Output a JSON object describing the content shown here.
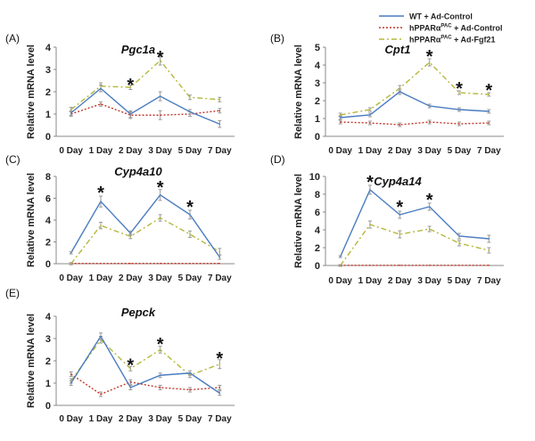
{
  "legend": {
    "position": "top-right",
    "entries": [
      {
        "key": "wt",
        "label": "WT + Ad-Control",
        "color": "#4a7cc0",
        "dash": "solid"
      },
      {
        "key": "pac_ctrl",
        "label_main": "hPPARα",
        "label_sup": "PAC",
        "label_tail": " + Ad-Control",
        "color": "#c0392b",
        "dash": "dotted"
      },
      {
        "key": "pac_fgf",
        "label_main": "hPPARα",
        "label_sup": "PAC",
        "label_tail": " + Ad-Fgf21",
        "color": "#b5b83a",
        "dash": "dashdot"
      }
    ]
  },
  "chart_data": [
    {
      "type": "line",
      "panel_label": "(A)",
      "title": "Pgc1a",
      "xlabel": "",
      "ylabel": "Relative mRNA level",
      "categories": [
        "0 Day",
        "1 Day",
        "2 Day",
        "3 Day",
        "5 Day",
        "7 Day"
      ],
      "ylim": [
        0,
        4
      ],
      "yticks": [
        0,
        1,
        2,
        3,
        4
      ],
      "series": [
        {
          "name": "WT + Ad-Control",
          "values": [
            1.05,
            2.15,
            1.0,
            1.8,
            1.1,
            0.55
          ],
          "errors": [
            0.1,
            0.15,
            0.15,
            0.2,
            0.1,
            0.15
          ]
        },
        {
          "name": "hPPARαPAC + Ad-Control",
          "values": [
            1.0,
            1.45,
            0.95,
            0.95,
            1.0,
            1.15
          ],
          "errors": [
            0.1,
            0.1,
            0.15,
            0.2,
            0.1,
            0.1
          ]
        },
        {
          "name": "hPPARαPAC + Ad-Fgf21",
          "values": [
            1.2,
            2.25,
            2.2,
            3.4,
            1.75,
            1.65
          ],
          "errors": [
            0.1,
            0.15,
            0.1,
            0.2,
            0.1,
            0.1
          ]
        }
      ],
      "stars": [
        {
          "index": 2,
          "value": 2.4
        },
        {
          "index": 3,
          "value": 3.65
        }
      ]
    },
    {
      "type": "line",
      "panel_label": "(B)",
      "title": "Cpt1",
      "xlabel": "",
      "ylabel": "Relative mRNA level",
      "categories": [
        "0 Day",
        "1 Day",
        "2 Day",
        "3 Day",
        "5 Day",
        "7 Day"
      ],
      "ylim": [
        0,
        5
      ],
      "yticks": [
        0,
        1,
        2,
        3,
        4,
        5
      ],
      "series": [
        {
          "name": "WT + Ad-Control",
          "values": [
            1.05,
            1.2,
            2.5,
            1.7,
            1.5,
            1.4
          ],
          "errors": [
            0.1,
            0.1,
            0.15,
            0.1,
            0.1,
            0.1
          ]
        },
        {
          "name": "hPPARαPAC + Ad-Control",
          "values": [
            0.8,
            0.75,
            0.65,
            0.8,
            0.7,
            0.75
          ],
          "errors": [
            0.1,
            0.1,
            0.1,
            0.1,
            0.1,
            0.1
          ]
        },
        {
          "name": "hPPARαPAC + Ad-Fgf21",
          "values": [
            1.2,
            1.5,
            2.7,
            4.15,
            2.45,
            2.35
          ],
          "errors": [
            0.1,
            0.1,
            0.15,
            0.2,
            0.1,
            0.1
          ]
        }
      ],
      "stars": [
        {
          "index": 3,
          "value": 4.6
        },
        {
          "index": 4,
          "value": 2.8
        },
        {
          "index": 5,
          "value": 2.7
        }
      ]
    },
    {
      "type": "line",
      "panel_label": "(C)",
      "title": "Cyp4a10",
      "xlabel": "",
      "ylabel": "Relative mRNA level",
      "categories": [
        "0 Day",
        "1 Day",
        "2 Day",
        "3 Day",
        "5 Day",
        "7 Day"
      ],
      "ylim": [
        0,
        8
      ],
      "yticks": [
        0,
        2,
        4,
        6,
        8
      ],
      "series": [
        {
          "name": "WT + Ad-Control",
          "values": [
            1.0,
            5.7,
            2.8,
            6.3,
            4.5,
            0.6
          ],
          "errors": [
            0.1,
            0.5,
            0.2,
            0.5,
            0.4,
            0.2
          ]
        },
        {
          "name": "hPPARαPAC + Ad-Control",
          "values": [
            0.02,
            0.02,
            0.02,
            0.02,
            0.02,
            0.02
          ],
          "errors": [
            0,
            0,
            0,
            0,
            0,
            0
          ]
        },
        {
          "name": "hPPARαPAC + Ad-Fgf21",
          "values": [
            0.0,
            3.5,
            2.5,
            4.2,
            2.7,
            1.1
          ],
          "errors": [
            0.1,
            0.3,
            0.2,
            0.3,
            0.3,
            0.3
          ]
        }
      ],
      "stars": [
        {
          "index": 1,
          "value": 6.7
        },
        {
          "index": 3,
          "value": 7.2
        },
        {
          "index": 4,
          "value": 5.4
        }
      ]
    },
    {
      "type": "line",
      "panel_label": "(D)",
      "title": "Cyp4a14",
      "xlabel": "",
      "ylabel": "Relative mRNA level",
      "categories": [
        "0 Day",
        "1 Day",
        "2 Day",
        "3 Day",
        "5 Day",
        "7 Day"
      ],
      "ylim": [
        0,
        10
      ],
      "yticks": [
        0,
        2,
        4,
        6,
        8,
        10
      ],
      "series": [
        {
          "name": "WT + Ad-Control",
          "values": [
            1.0,
            8.5,
            5.7,
            6.6,
            3.3,
            3.0
          ],
          "errors": [
            0.1,
            0.5,
            0.4,
            0.4,
            0.3,
            0.4
          ]
        },
        {
          "name": "hPPARαPAC + Ad-Control",
          "values": [
            0.02,
            0.02,
            0.02,
            0.02,
            0.02,
            0.02
          ],
          "errors": [
            0,
            0,
            0,
            0,
            0,
            0
          ]
        },
        {
          "name": "hPPARαPAC + Ad-Fgf21",
          "values": [
            0.0,
            4.6,
            3.5,
            4.1,
            2.5,
            1.7
          ],
          "errors": [
            0.1,
            0.4,
            0.4,
            0.3,
            0.3,
            0.3
          ]
        }
      ],
      "stars": [
        {
          "index": 1,
          "value": 9.6
        },
        {
          "index": 2,
          "value": 6.8
        },
        {
          "index": 3,
          "value": 7.6
        }
      ]
    },
    {
      "type": "line",
      "panel_label": "(E)",
      "title": "Pepck",
      "xlabel": "",
      "ylabel": "Relative mRNA level",
      "categories": [
        "0 Day",
        "1 Day",
        "2 Day",
        "3 Day",
        "5 Day",
        "7 Day"
      ],
      "ylim": [
        0,
        4
      ],
      "yticks": [
        0,
        1,
        2,
        3,
        4
      ],
      "series": [
        {
          "name": "WT + Ad-Control",
          "values": [
            1.0,
            3.1,
            0.8,
            1.35,
            1.45,
            0.55
          ],
          "errors": [
            0.1,
            0.15,
            0.1,
            0.1,
            0.1,
            0.1
          ]
        },
        {
          "name": "hPPARαPAC + Ad-Control",
          "values": [
            1.4,
            0.5,
            1.05,
            0.8,
            0.7,
            0.8
          ],
          "errors": [
            0.1,
            0.1,
            0.1,
            0.1,
            0.1,
            0.1
          ]
        },
        {
          "name": "hPPARαPAC + Ad-Fgf21",
          "values": [
            1.1,
            2.95,
            1.65,
            2.5,
            1.35,
            1.85
          ],
          "errors": [
            0.1,
            0.15,
            0.1,
            0.15,
            0.1,
            0.2
          ]
        }
      ],
      "stars": [
        {
          "index": 2,
          "value": 1.9
        },
        {
          "index": 3,
          "value": 2.85
        },
        {
          "index": 5,
          "value": 2.2
        }
      ]
    }
  ]
}
